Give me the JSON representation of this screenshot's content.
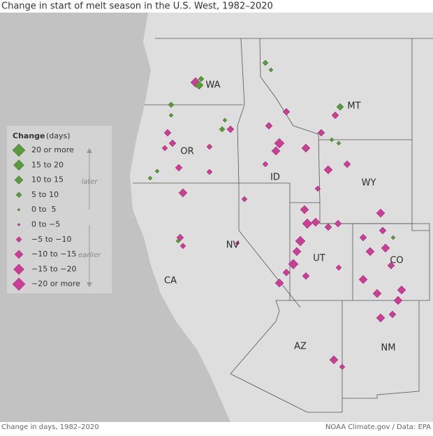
{
  "title": "Change in start of melt season in the U.S. West, 1982–2020",
  "legend": {
    "title": "Change",
    "unit": "(days)",
    "later": "later",
    "earlier": "earlier",
    "items": [
      "20 or more",
      "15 to 20",
      "10 to 15",
      "5 to 10",
      "0 to  5",
      "0 to −5",
      "−5 to −10",
      "−10 to −15",
      "−15 to −20",
      "−20 or more"
    ]
  },
  "states": [
    "WA",
    "MT",
    "OR",
    "ID",
    "WY",
    "NV",
    "UT",
    "CO",
    "CA",
    "AZ",
    "NM"
  ],
  "footer": {
    "left": "Change in days, 1982–2020",
    "right": "NOAA Climate.gov / Data: EPA"
  }
}
